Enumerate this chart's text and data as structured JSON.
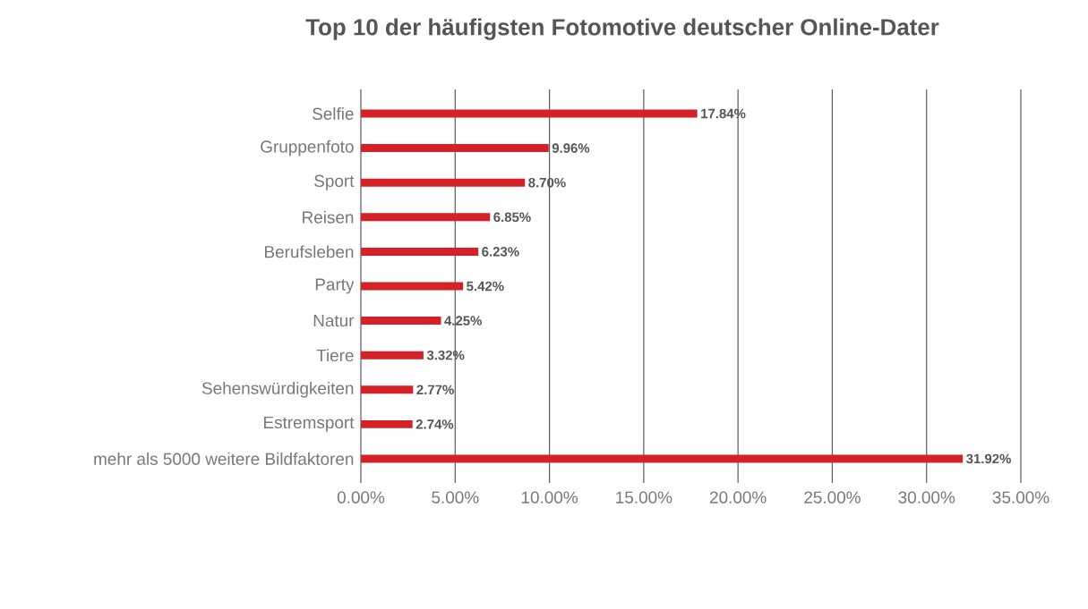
{
  "chart_data": {
    "type": "bar",
    "orientation": "horizontal",
    "title": "Top 10 der häufigsten Fotomotive deutscher Online-Dater",
    "categories": [
      "Selfie",
      "Gruppenfoto",
      "Sport",
      "Reisen",
      "Berufsleben",
      "Party",
      "Natur",
      "Tiere",
      "Sehenswürdigkeiten",
      "Estremsport",
      "mehr als 5000 weitere Bildfaktoren"
    ],
    "values": [
      17.84,
      9.96,
      8.7,
      6.85,
      6.23,
      5.42,
      4.25,
      3.32,
      2.77,
      2.74,
      31.92
    ],
    "value_labels": [
      "17.84%",
      "9.96%",
      "8.70%",
      "6.85%",
      "6.23%",
      "5.42%",
      "4.25%",
      "3.32%",
      "2.77%",
      "2.74%",
      "31.92%"
    ],
    "color": "#d42027",
    "xlim": [
      0,
      35
    ],
    "xticks": [
      {
        "value": 0,
        "label": "0.00%"
      },
      {
        "value": 5,
        "label": "5.00%"
      },
      {
        "value": 10,
        "label": "10.00%"
      },
      {
        "value": 15,
        "label": "15.00%"
      },
      {
        "value": 20,
        "label": "20.00%"
      },
      {
        "value": 25,
        "label": "25.00%"
      },
      {
        "value": 30,
        "label": "30.00%"
      },
      {
        "value": 35,
        "label": "35.00%"
      }
    ],
    "grid": "x"
  }
}
